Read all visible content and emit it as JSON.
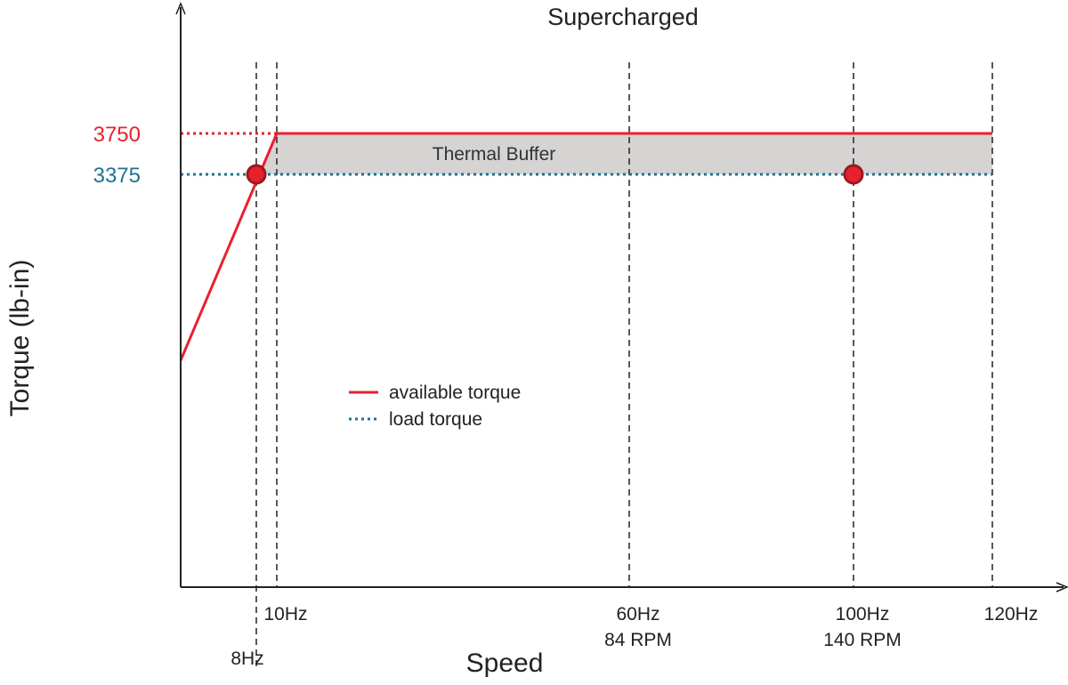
{
  "chart_data": {
    "type": "line",
    "title": "Supercharged",
    "xlabel": "Speed",
    "ylabel": "Torque (lb-in)",
    "x_ticks": [
      {
        "value": 8,
        "lines": [
          "8Hz"
        ]
      },
      {
        "value": 10,
        "lines": [
          "10Hz"
        ]
      },
      {
        "value": 60,
        "lines": [
          "60Hz",
          "84 RPM"
        ]
      },
      {
        "value": 100,
        "lines": [
          "100Hz",
          "140 RPM"
        ]
      },
      {
        "value": 120,
        "lines": [
          "120Hz"
        ]
      }
    ],
    "y_ticks": [
      {
        "value": 3750,
        "label": "3750",
        "color": "#e8212e"
      },
      {
        "value": 3375,
        "label": "3375",
        "color": "#1f7390"
      }
    ],
    "series": [
      {
        "name": "available torque",
        "style": "solid",
        "color": "#e8212e",
        "points": [
          [
            0,
            1670
          ],
          [
            10,
            3750
          ],
          [
            120,
            3750
          ]
        ]
      },
      {
        "name": "load torque",
        "style": "dotted",
        "color": "#1f7390",
        "points": [
          [
            0,
            3375
          ],
          [
            120,
            3375
          ]
        ]
      }
    ],
    "operating_points": [
      [
        8,
        3375
      ],
      [
        100,
        3375
      ]
    ],
    "shaded_region": {
      "label": "Thermal Buffer",
      "color": "#d6d3d3",
      "between": [
        3375,
        3750
      ]
    },
    "legend_placement": "center-left",
    "grid": false
  }
}
